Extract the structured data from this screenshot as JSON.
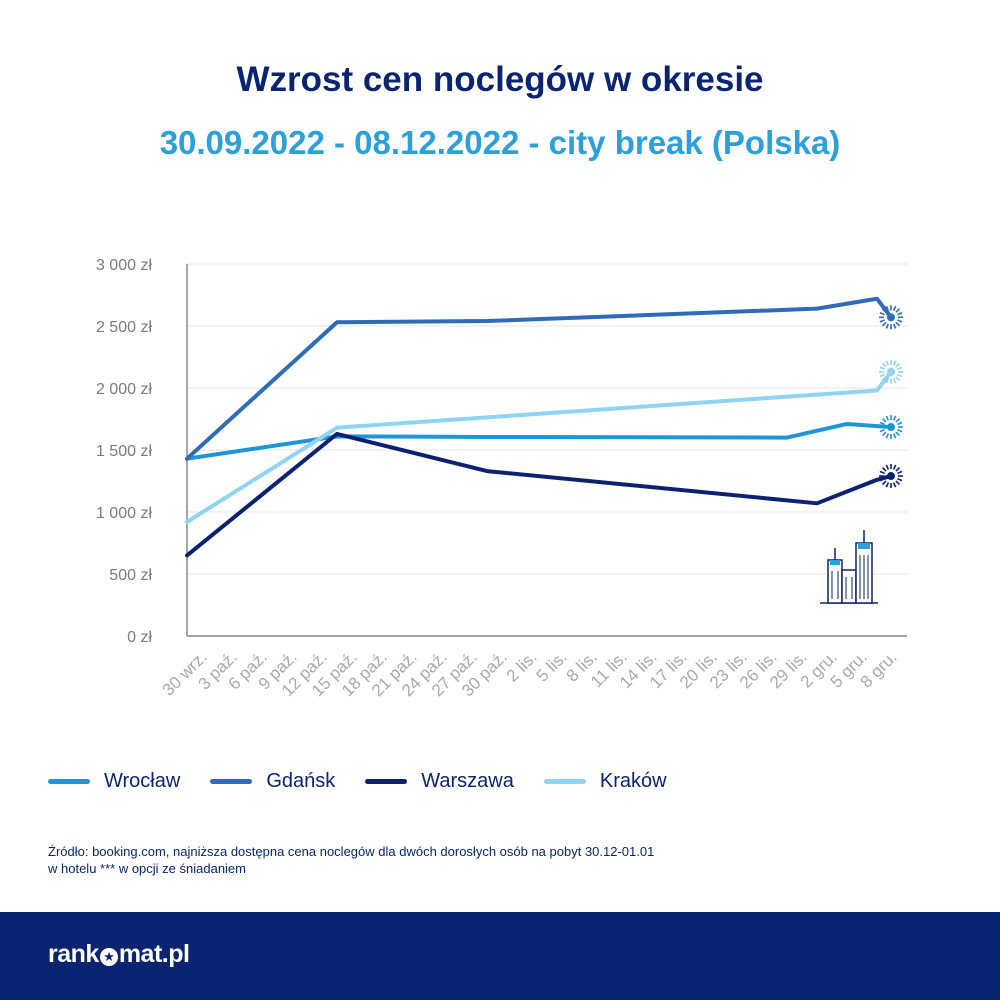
{
  "chart_data": {
    "type": "line",
    "title": "Wzrost cen noclegów w okresie",
    "subtitle": "30.09.2022 - 08.12.2022 - city break (Polska)",
    "categories": [
      "30 wrz.",
      "3 paź.",
      "6 paź.",
      "9 paź.",
      "12 paź.",
      "15 paź.",
      "18 paź.",
      "21 paź.",
      "24 paź.",
      "27 paź.",
      "30 paź.",
      "2 lis.",
      "5 lis.",
      "8 lis.",
      "11 lis.",
      "14 lis.",
      "17 lis.",
      "20 lis.",
      "23 lis.",
      "26 lis.",
      "29 lis.",
      "2 gru.",
      "5 gru.",
      "8 gru."
    ],
    "y_ticks": [
      "0 zł",
      "500 zł",
      "1 000 zł",
      "1 500 zł",
      "2 000 zł",
      "2 500 zł",
      "3 000 zł"
    ],
    "ylim": [
      0,
      3000
    ],
    "series": [
      {
        "name": "Wrocław",
        "color": "#1f95d3",
        "points": [
          [
            0,
            1430
          ],
          [
            5,
            1610
          ],
          [
            10,
            1605
          ],
          [
            20,
            1600
          ],
          [
            22,
            1710
          ],
          [
            24,
            1685
          ]
        ]
      },
      {
        "name": "Gdańsk",
        "color": "#2e6bb8",
        "points": [
          [
            0,
            1430
          ],
          [
            5,
            2530
          ],
          [
            10,
            2540
          ],
          [
            21,
            2640
          ],
          [
            23,
            2720
          ],
          [
            25,
            2570
          ]
        ]
      },
      {
        "name": "Warszawa",
        "color": "#0c2270",
        "points": [
          [
            0,
            650
          ],
          [
            5,
            1630
          ],
          [
            10,
            1330
          ],
          [
            21,
            1070
          ],
          [
            23,
            1260
          ],
          [
            25,
            1290
          ]
        ]
      },
      {
        "name": "Kraków",
        "color": "#8fd4f3",
        "points": [
          [
            0,
            920
          ],
          [
            5,
            1680
          ],
          [
            23,
            1980
          ],
          [
            25,
            2130
          ]
        ]
      }
    ],
    "grid": true,
    "legend_position": "bottom"
  },
  "source_text_line1": "Źródło: booking.com, najniższa dostępna cena noclegów dla dwóch dorosłych osób na pobyt 30.12-01.01",
  "source_text_line2": "w hotelu *** w opcji ze śniadaniem",
  "brand": {
    "left": "rank",
    "right": "mat.pl",
    "star": "★",
    "bg_color": "#0a2472"
  },
  "decoration_icon": "city-buildings-icon"
}
